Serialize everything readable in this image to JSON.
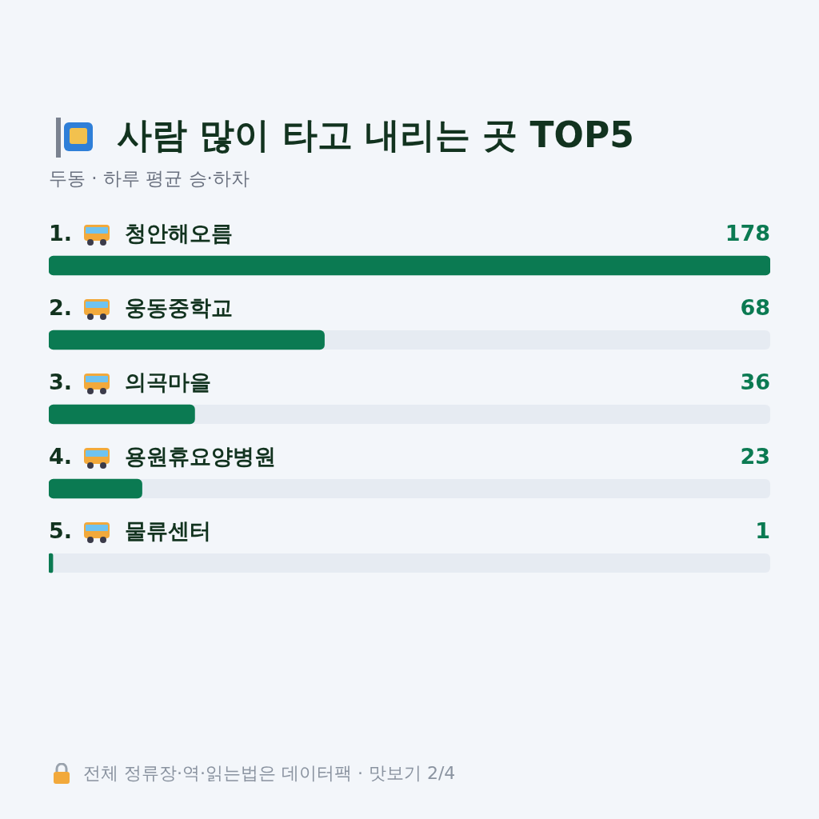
{
  "chart_data": {
    "type": "bar",
    "orientation": "horizontal",
    "title": "사람 많이 타고 내리는 곳 TOP5",
    "subtitle": "두동 · 하루 평균 승·하차",
    "categories": [
      "1. 청안해오름",
      "2. 웅동중학교",
      "3. 의곡마을",
      "4. 용원휴요양병원",
      "5. 물류센터"
    ],
    "values": [
      178,
      68,
      36,
      23,
      1
    ],
    "color": "#0b7a52",
    "xlim": [
      0,
      178
    ],
    "tick_labels": false,
    "grid": false,
    "legend": false,
    "data_labels": true,
    "annotations": [
      "전체 정류장·역·읽는법은 데이터팩 · 맛보기 2/4"
    ]
  }
}
